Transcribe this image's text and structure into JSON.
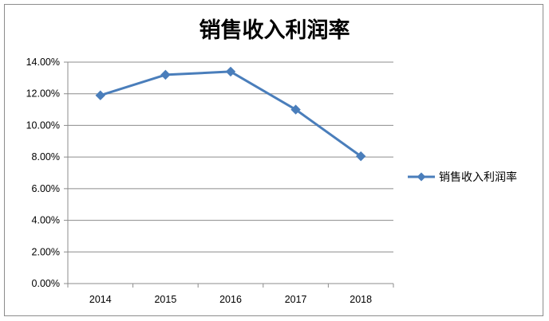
{
  "chart_data": {
    "type": "line",
    "title": "销售收入利润率",
    "categories": [
      "2014",
      "2015",
      "2016",
      "2017",
      "2018"
    ],
    "series": [
      {
        "name": "销售收入利润率",
        "values": [
          11.9,
          13.2,
          13.4,
          11.0,
          8.05
        ],
        "color": "#4a7ebb"
      }
    ],
    "ylim": [
      0,
      14
    ],
    "yticks": [
      "0.00%",
      "2.00%",
      "4.00%",
      "6.00%",
      "8.00%",
      "10.00%",
      "12.00%",
      "14.00%"
    ],
    "grid": true,
    "legend_position": "right",
    "xlabel": "",
    "ylabel": ""
  }
}
